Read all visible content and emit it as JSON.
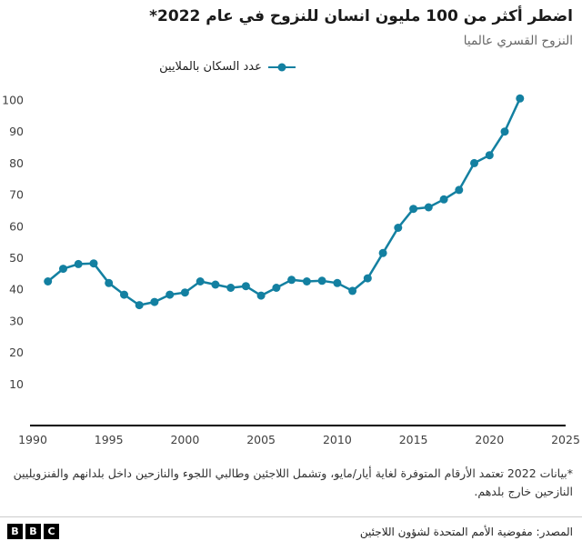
{
  "header": {
    "title": "اضطر أكثر من 100 مليون انسان للنزوح في عام 2022*",
    "subtitle": "النزوح القسري عالميا"
  },
  "legend": {
    "label": "عدد السكان بالملايين"
  },
  "chart_data": {
    "type": "line",
    "title": "اضطر أكثر من 100 مليون انسان للنزوح في عام 2022*",
    "subtitle": "النزوح القسري عالميا",
    "series_name": "عدد السكان بالملايين",
    "x": [
      1991,
      1992,
      1993,
      1994,
      1995,
      1996,
      1997,
      1998,
      1999,
      2000,
      2001,
      2002,
      2003,
      2004,
      2005,
      2006,
      2007,
      2008,
      2009,
      2010,
      2011,
      2012,
      2013,
      2014,
      2015,
      2016,
      2017,
      2018,
      2019,
      2020,
      2021,
      2022
    ],
    "values": [
      42.5,
      46.5,
      48,
      48.2,
      42,
      38.3,
      35,
      36,
      38.3,
      39,
      42.5,
      41.5,
      40.5,
      41,
      38,
      40.5,
      43,
      42.5,
      42.7,
      42,
      39.5,
      43.5,
      51.5,
      59.5,
      65.5,
      66,
      68.5,
      71.5,
      80,
      82.5,
      90,
      100.5
    ],
    "xlabel": "",
    "ylabel": "",
    "x_ticks": [
      1990,
      1995,
      2000,
      2005,
      2010,
      2015,
      2020,
      2025
    ],
    "y_ticks": [
      10,
      20,
      30,
      40,
      50,
      60,
      70,
      80,
      90,
      100
    ],
    "xlim": [
      1990,
      2025
    ],
    "ylim": [
      0,
      100
    ],
    "line_color": "#1380A1",
    "axis_color": "#000000",
    "grid": false,
    "legend_position": "top"
  },
  "footnote": "*بيانات 2022 تعتمد الأرقام المتوفرة لغاية أيار/مايو، وتشمل اللاجئين وطالبي اللجوء والنازحين داخل بلدانهم والفنزويليين النازحين خارج بلدهم.",
  "footer": {
    "source": "المصدر: مفوضية الأمم المتحدة لشؤون اللاجئين",
    "logo_letters": [
      "B",
      "B",
      "C"
    ]
  }
}
